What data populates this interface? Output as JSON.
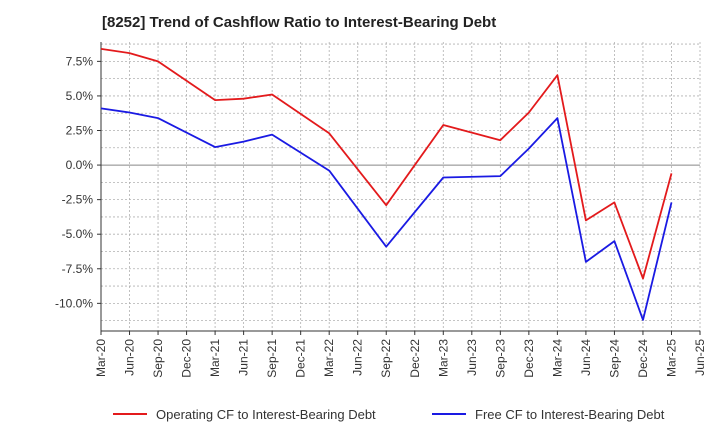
{
  "chart_data": {
    "type": "line",
    "title": "[8252]  Trend of Cashflow Ratio to Interest-Bearing Debt",
    "xlabel": "",
    "ylabel": "",
    "categories": [
      "Mar-20",
      "Jun-20",
      "Sep-20",
      "Dec-20",
      "Mar-21",
      "Jun-21",
      "Sep-21",
      "Dec-21",
      "Mar-22",
      "Jun-22",
      "Sep-22",
      "Dec-22",
      "Mar-23",
      "Jun-23",
      "Sep-23",
      "Dec-23",
      "Mar-24",
      "Jun-24",
      "Sep-24",
      "Dec-24",
      "Mar-25",
      "Jun-25"
    ],
    "y_ticks": [
      7.5,
      5.0,
      2.5,
      0.0,
      -2.5,
      -5.0,
      -7.5,
      -10.0
    ],
    "y_tick_labels": [
      "7.5%",
      "5.0%",
      "2.5%",
      "0.0%",
      "-2.5%",
      "-5.0%",
      "-7.5%",
      "-10.0%"
    ],
    "ylim": [
      -12.0,
      8.9
    ],
    "grid": true,
    "legend_position": "bottom",
    "series": [
      {
        "name": "Operating CF to Interest-Bearing Debt",
        "color": "#e31a1c",
        "values": [
          8.4,
          8.1,
          7.5,
          null,
          4.7,
          4.8,
          5.1,
          null,
          2.3,
          null,
          -2.9,
          null,
          2.9,
          null,
          1.8,
          3.8,
          6.5,
          -4.0,
          -2.7,
          -8.2,
          -0.6,
          null
        ]
      },
      {
        "name": "Free CF to Interest-Bearing Debt",
        "color": "#1a1ae3",
        "values": [
          4.1,
          3.8,
          3.4,
          null,
          1.3,
          1.7,
          2.2,
          null,
          -0.4,
          null,
          -5.9,
          null,
          -0.9,
          null,
          -0.8,
          1.2,
          3.4,
          -7.0,
          -5.5,
          -11.2,
          -2.7,
          null
        ]
      }
    ]
  }
}
